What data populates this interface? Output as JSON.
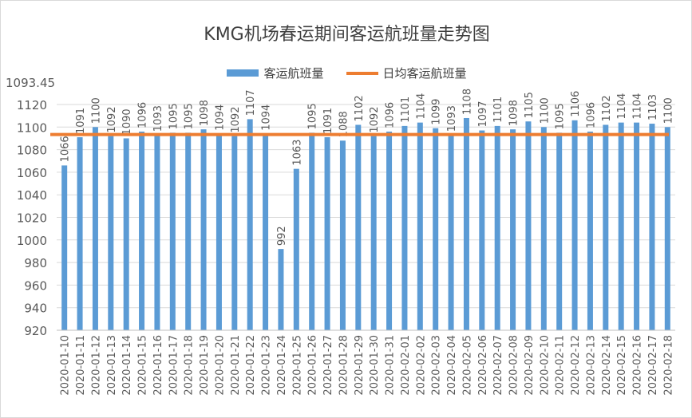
{
  "chart_data": {
    "type": "bar",
    "title": "KMG机场春运期间客运航班量走势图",
    "xlabel": "",
    "ylabel": "",
    "ylim": [
      920,
      1120
    ],
    "yticks": [
      920,
      940,
      960,
      980,
      1000,
      1020,
      1040,
      1060,
      1080,
      1100,
      1120
    ],
    "grid": true,
    "legend_position": "top",
    "categories": [
      "2020-01-10",
      "2020-01-11",
      "2020-01-12",
      "2020-01-13",
      "2020-01-14",
      "2020-01-15",
      "2020-01-16",
      "2020-01-17",
      "2020-01-18",
      "2020-01-19",
      "2020-01-20",
      "2020-01-21",
      "2020-01-22",
      "2020-01-23",
      "2020-01-24",
      "2020-01-25",
      "2020-01-26",
      "2020-01-27",
      "2020-01-28",
      "2020-01-29",
      "2020-01-30",
      "2020-01-31",
      "2020-02-01",
      "2020-02-02",
      "2020-02-03",
      "2020-02-04",
      "2020-02-05",
      "2020-02-06",
      "2020-02-07",
      "2020-02-08",
      "2020-02-09",
      "2020-02-10",
      "2020-02-11",
      "2020-02-12",
      "2020-02-13",
      "2020-02-14",
      "2020-02-15",
      "2020-02-16",
      "2020-02-17",
      "2020-02-18"
    ],
    "series": [
      {
        "name": "客运航班量",
        "type": "bar",
        "color": "#5b9bd5",
        "values": [
          1066,
          1091,
          1100,
          1092,
          1090,
          1096,
          1093,
          1095,
          1095,
          1098,
          1094,
          1092,
          1107,
          1094,
          992,
          1063,
          1095,
          1091,
          1088,
          1102,
          1092,
          1096,
          1101,
          1104,
          1099,
          1093,
          1108,
          1097,
          1101,
          1098,
          1105,
          1100,
          1095,
          1106,
          1096,
          1102,
          1104,
          1104,
          1103,
          1100
        ]
      },
      {
        "name": "日均客运航班量",
        "type": "line",
        "color": "#ed7d31",
        "value": 1093.45,
        "label": "1093.45"
      }
    ]
  }
}
